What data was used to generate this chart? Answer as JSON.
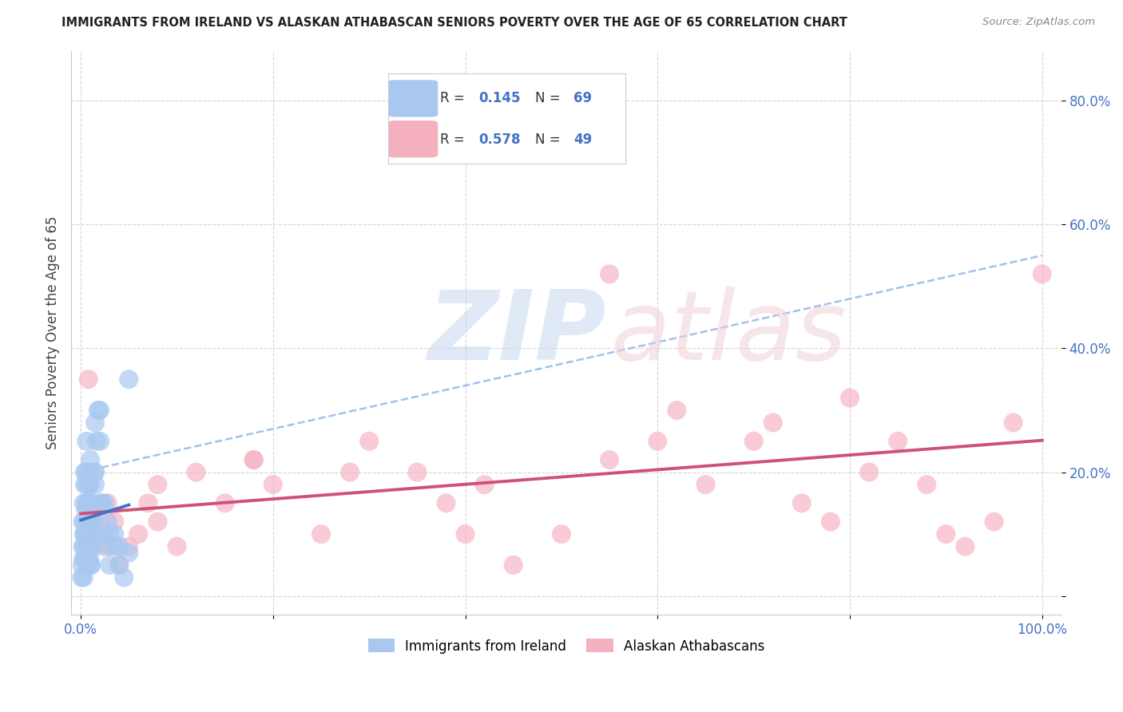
{
  "title": "IMMIGRANTS FROM IRELAND VS ALASKAN ATHABASCAN SENIORS POVERTY OVER THE AGE OF 65 CORRELATION CHART",
  "source": "Source: ZipAtlas.com",
  "ylabel": "Seniors Poverty Over the Age of 65",
  "xlim": [
    -1,
    102
  ],
  "ylim": [
    -3,
    88
  ],
  "yticks": [
    0,
    20,
    40,
    60,
    80
  ],
  "ytick_labels": [
    "",
    "20.0%",
    "40.0%",
    "60.0%",
    "80.0%"
  ],
  "xticks": [
    0,
    20,
    40,
    60,
    80,
    100
  ],
  "xtick_labels": [
    "0.0%",
    "",
    "",
    "",
    "",
    "100.0%"
  ],
  "legend_labels": [
    "Immigrants from Ireland",
    "Alaskan Athabascans"
  ],
  "blue_color": "#A8C8F0",
  "pink_color": "#F5B0C0",
  "blue_edge_color": "#5580C8",
  "pink_edge_color": "#D06080",
  "blue_line_color": "#4472C4",
  "pink_line_color": "#D0507A",
  "dash_line_color": "#90B8E8",
  "tick_label_color": "#4472C4",
  "blue_R": 0.145,
  "blue_N": 69,
  "pink_R": 0.578,
  "pink_N": 49,
  "blue_x": [
    0.1,
    0.15,
    0.2,
    0.2,
    0.25,
    0.3,
    0.3,
    0.35,
    0.4,
    0.4,
    0.45,
    0.5,
    0.5,
    0.55,
    0.6,
    0.6,
    0.65,
    0.7,
    0.7,
    0.75,
    0.8,
    0.8,
    0.85,
    0.9,
    0.9,
    0.95,
    1.0,
    1.0,
    1.1,
    1.2,
    1.3,
    1.4,
    1.5,
    1.6,
    1.8,
    2.0,
    2.2,
    2.5,
    2.8,
    3.0,
    3.5,
    4.0,
    5.0,
    0.3,
    0.4,
    0.5,
    0.6,
    0.7,
    0.8,
    0.9,
    1.0,
    1.1,
    1.2,
    1.3,
    1.5,
    1.8,
    2.0,
    2.5,
    3.0,
    3.5,
    4.0,
    4.5,
    5.0,
    0.4,
    0.6,
    0.8,
    1.0,
    1.5,
    2.0
  ],
  "blue_y": [
    3,
    5,
    8,
    12,
    6,
    10,
    15,
    8,
    12,
    18,
    6,
    10,
    14,
    20,
    8,
    12,
    18,
    5,
    10,
    15,
    8,
    14,
    20,
    6,
    12,
    18,
    5,
    10,
    8,
    15,
    12,
    20,
    18,
    25,
    10,
    30,
    15,
    8,
    12,
    5,
    10,
    8,
    7,
    3,
    6,
    10,
    15,
    8,
    12,
    18,
    22,
    5,
    10,
    14,
    20,
    30,
    25,
    15,
    10,
    8,
    5,
    3,
    35,
    20,
    25,
    7,
    12,
    28,
    15
  ],
  "pink_x": [
    0.5,
    0.8,
    1.0,
    1.5,
    2.0,
    2.5,
    3.0,
    3.5,
    4.0,
    5.0,
    6.0,
    7.0,
    8.0,
    10.0,
    12.0,
    15.0,
    18.0,
    20.0,
    25.0,
    30.0,
    35.0,
    38.0,
    40.0,
    42.0,
    45.0,
    50.0,
    55.0,
    60.0,
    62.0,
    65.0,
    70.0,
    72.0,
    75.0,
    78.0,
    80.0,
    82.0,
    85.0,
    88.0,
    90.0,
    92.0,
    95.0,
    97.0,
    100.0,
    1.2,
    2.8,
    8.0,
    18.0,
    28.0,
    55.0
  ],
  "pink_y": [
    10,
    35,
    15,
    8,
    12,
    10,
    8,
    12,
    5,
    8,
    10,
    15,
    12,
    8,
    20,
    15,
    22,
    18,
    10,
    25,
    20,
    15,
    10,
    18,
    5,
    10,
    22,
    25,
    30,
    18,
    25,
    28,
    15,
    12,
    32,
    20,
    25,
    18,
    10,
    8,
    12,
    28,
    52,
    12,
    15,
    18,
    22,
    20,
    52
  ]
}
